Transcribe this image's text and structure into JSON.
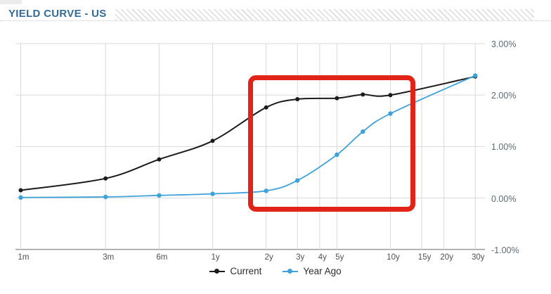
{
  "header": {
    "title": "YIELD CURVE - US"
  },
  "chart_data": {
    "type": "line",
    "title": "YIELD CURVE - US",
    "x_axis": {
      "scale": "logarithmic-time",
      "tick_labels": [
        "1m",
        "3m",
        "6m",
        "1y",
        "2y",
        "3y",
        "4y",
        "5y",
        "10y",
        "15y",
        "20y",
        "30y"
      ],
      "tick_months": [
        1,
        3,
        6,
        12,
        24,
        36,
        48,
        60,
        120,
        180,
        240,
        360
      ]
    },
    "y_axis": {
      "tick_labels": [
        "3.00%",
        "2.00%",
        "1.00%",
        "0.00%",
        "-1.00%"
      ],
      "tick_values": [
        3,
        2,
        1,
        0,
        -1
      ],
      "range": [
        -1,
        3
      ],
      "unit": "percent",
      "position": "right"
    },
    "grid": true,
    "series": [
      {
        "name": "Current",
        "color": "#1b1b1b",
        "marker": "circle",
        "tenors": [
          "1m",
          "3m",
          "6m",
          "1y",
          "2y",
          "3y",
          "5y",
          "7y",
          "10y",
          "30y"
        ],
        "months": [
          1,
          3,
          6,
          12,
          24,
          36,
          60,
          84,
          120,
          360
        ],
        "values": [
          0.15,
          0.38,
          0.75,
          1.11,
          1.76,
          1.92,
          1.94,
          2.01,
          2.0,
          2.36
        ]
      },
      {
        "name": "Year Ago",
        "color": "#3fa2d9",
        "marker": "circle",
        "tenors": [
          "1m",
          "3m",
          "6m",
          "1y",
          "2y",
          "3y",
          "5y",
          "7y",
          "10y",
          "30y"
        ],
        "months": [
          1,
          3,
          6,
          12,
          24,
          36,
          60,
          84,
          120,
          360
        ],
        "values": [
          0.01,
          0.02,
          0.05,
          0.08,
          0.14,
          0.34,
          0.84,
          1.29,
          1.64,
          2.38
        ]
      }
    ],
    "legend": {
      "position": "bottom",
      "items": [
        "Current",
        "Year Ago"
      ]
    },
    "annotation": {
      "shape": "rectangle",
      "color": "#e22317",
      "covers": "2y to 10y region"
    }
  },
  "colors": {
    "title": "#336a97",
    "gridline": "#d9d9d9",
    "axis_line": "#9a9a9a",
    "x_label": "#4f4f4f",
    "y_label": "#5e6a75",
    "annotation_red": "#e22317"
  }
}
